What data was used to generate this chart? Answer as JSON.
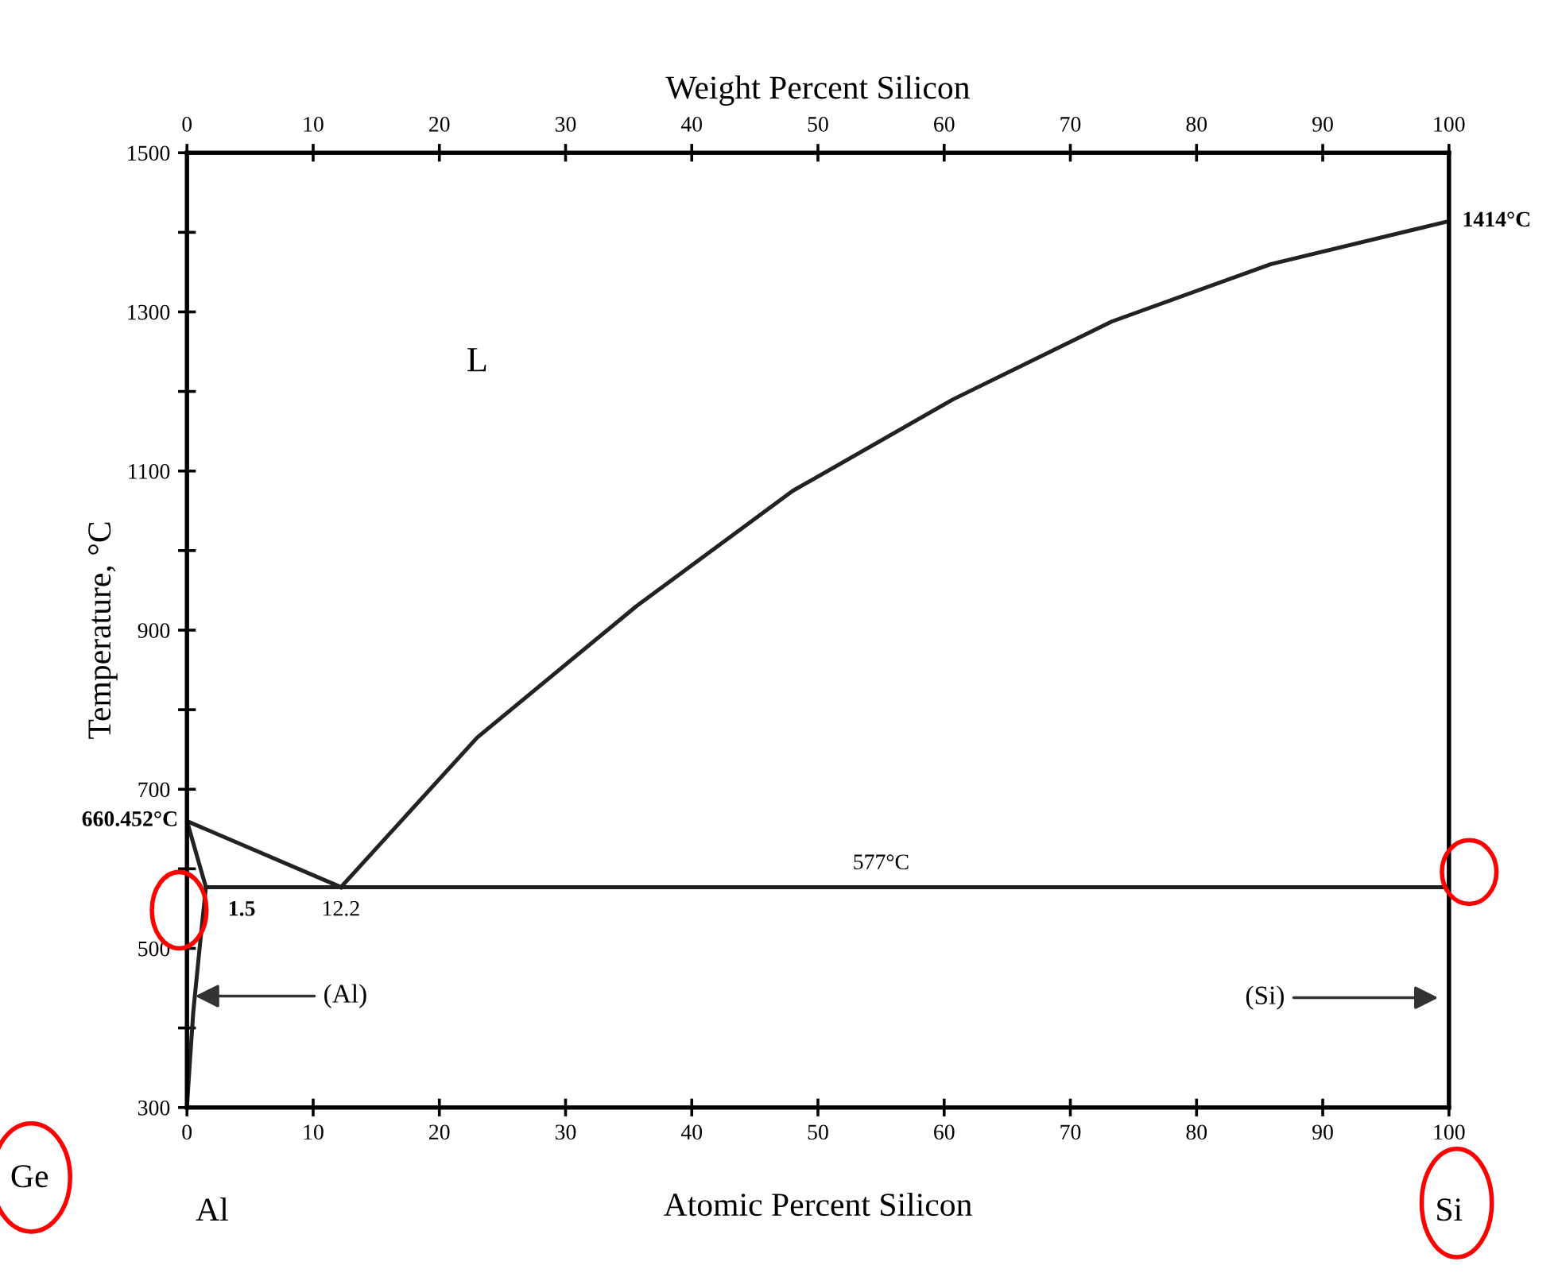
{
  "chart_data": {
    "type": "line",
    "xlabel": "Atomic Percent Silicon",
    "x2label": "Weight Percent Silicon",
    "ylabel": "Temperature, °C",
    "xlim": [
      0,
      100
    ],
    "xticks": [
      0,
      10,
      20,
      30,
      40,
      50,
      60,
      70,
      80,
      90,
      100
    ],
    "x2lim": [
      0,
      100
    ],
    "x2ticks": [
      0,
      10,
      20,
      30,
      40,
      50,
      60,
      70,
      80,
      90,
      100
    ],
    "ylim": [
      300,
      1500
    ],
    "yticks": [
      300,
      {
        "value": 400,
        "label": null
      },
      500,
      {
        "value": 600,
        "label": null
      },
      700,
      {
        "value": 800,
        "label": null
      },
      900,
      {
        "value": 1000,
        "label": null
      },
      1100,
      {
        "value": 1200,
        "label": null
      },
      1300,
      {
        "value": 1400,
        "label": null
      },
      1500
    ],
    "series": [
      {
        "color": "#222222",
        "x": [
          0,
          12.2
        ],
        "values": [
          660,
          577
        ]
      },
      {
        "color": "#222222",
        "x": [
          12.2,
          23,
          35.6,
          48,
          60.7,
          73.3,
          85.9,
          100
        ],
        "values": [
          577,
          765,
          930,
          1075,
          1190,
          1288,
          1360,
          1414
        ]
      },
      {
        "color": "#222222",
        "x": [
          1.5,
          100
        ],
        "values": [
          577,
          577
        ]
      },
      {
        "color": "#222222",
        "x": [
          0,
          1.5,
          1.0,
          0.5,
          0.2,
          0
        ],
        "values": [
          660,
          577,
          500,
          420,
          350,
          300
        ]
      }
    ],
    "grid": false,
    "legend": false,
    "marker": "none",
    "line_style": "solid",
    "annotations": [
      "L",
      {
        "text": "660.452°C",
        "x": 0,
        "y": 660.452
      },
      {
        "text": "1414°C",
        "x": 100,
        "y": 1414
      },
      {
        "text": "577°C",
        "x": 55,
        "y": 577
      },
      {
        "text": "1.5",
        "x": 1.5,
        "y": 577
      },
      {
        "text": "12.2",
        "x": 12.2,
        "y": 577
      },
      {
        "text": "(Al)",
        "x": 0.3,
        "y": 440
      },
      "(Si)",
      "Al",
      "Si",
      "Ge"
    ]
  }
}
